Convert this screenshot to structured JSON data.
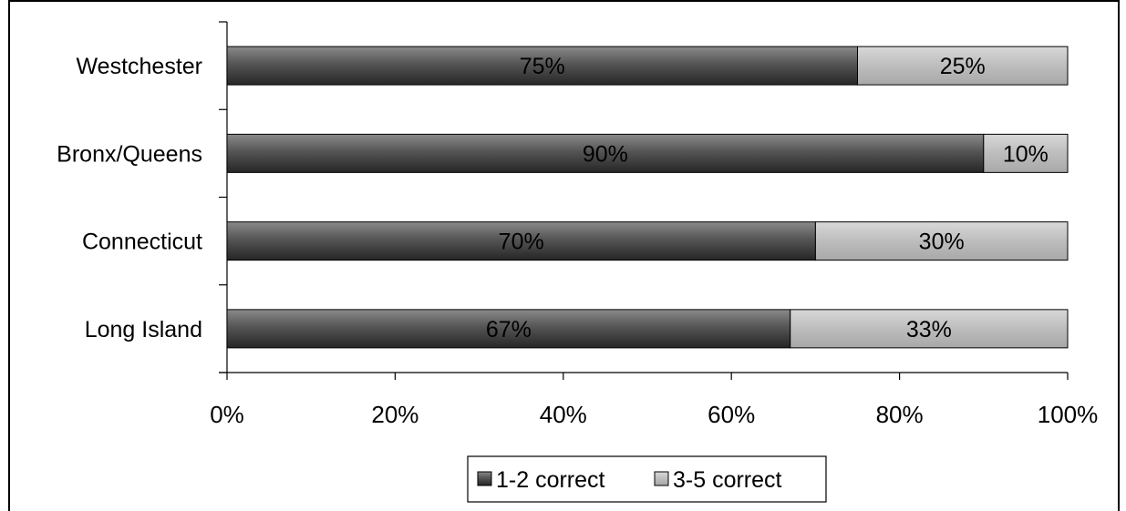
{
  "chart_data": {
    "type": "bar",
    "orientation": "horizontal",
    "stacked": true,
    "percent_stacked": true,
    "categories": [
      "Westchester",
      "Bronx/Queens",
      "Connecticut",
      "Long Island"
    ],
    "series": [
      {
        "name": "1-2 correct",
        "values": [
          75,
          90,
          70,
          67
        ],
        "labels": [
          "75%",
          "90%",
          "70%",
          "67%"
        ],
        "color": "#555555"
      },
      {
        "name": "3-5 correct",
        "values": [
          25,
          10,
          30,
          33
        ],
        "labels": [
          "25%",
          "10%",
          "30%",
          "33%"
        ],
        "color": "#c0c0c0"
      }
    ],
    "xlim": [
      0,
      100
    ],
    "xticks": [
      0,
      20,
      40,
      60,
      80,
      100
    ],
    "xtick_labels": [
      "0%",
      "20%",
      "40%",
      "60%",
      "80%",
      "100%"
    ],
    "grid": false,
    "legend_position": "bottom",
    "title": "",
    "xlabel": "",
    "ylabel": ""
  }
}
